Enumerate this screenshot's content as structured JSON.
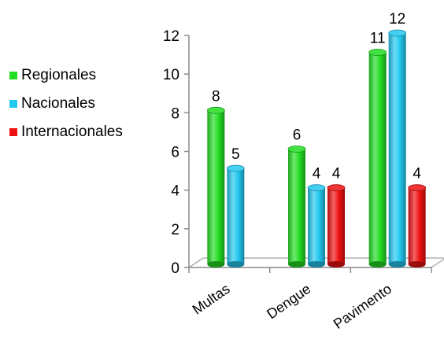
{
  "chart_data": {
    "type": "bar",
    "categories": [
      "Multas",
      "Dengue",
      "Pavimento"
    ],
    "series": [
      {
        "name": "Regionales",
        "color": "#22dd22",
        "values": [
          8,
          6,
          11
        ]
      },
      {
        "name": "Nacionales",
        "color": "#22c8f0",
        "values": [
          5,
          4,
          12
        ]
      },
      {
        "name": "Internacionales",
        "color": "#ee1111",
        "values": [
          null,
          4,
          4
        ]
      }
    ],
    "yticks": [
      "0",
      "2",
      "4",
      "6",
      "8",
      "10",
      "12"
    ],
    "ylim": [
      0,
      12
    ],
    "title": "",
    "xlabel": "",
    "ylabel": "",
    "legend_position": "left",
    "grid": false
  }
}
